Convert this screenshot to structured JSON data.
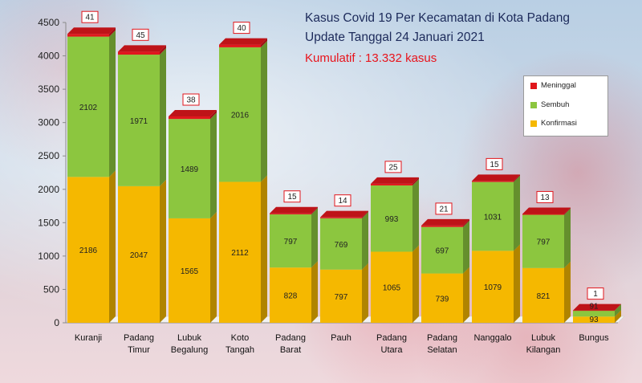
{
  "header": {
    "title_line1": "Kasus Covid 19 Per Kecamatan di Kota Padang",
    "title_line2": "Update Tanggal 24 Januari 2021",
    "cumulative": "Kumulatif : 13.332 kasus"
  },
  "legend": [
    {
      "label": "Meninggal",
      "color": "#e0161c"
    },
    {
      "label": "Sembuh",
      "color": "#8cc63f"
    },
    {
      "label": "Konfirmasi",
      "color": "#f5b800"
    }
  ],
  "chart_data": {
    "type": "bar",
    "stacked": true,
    "categories": [
      [
        "Kuranji"
      ],
      [
        "Padang",
        "Timur"
      ],
      [
        "Lubuk",
        "Begalung"
      ],
      [
        "Koto",
        "Tangah"
      ],
      [
        "Padang",
        "Barat"
      ],
      [
        "Pauh"
      ],
      [
        "Padang",
        "Utara"
      ],
      [
        "Padang",
        "Selatan"
      ],
      [
        "Nanggalo"
      ],
      [
        "Lubuk",
        "Kilangan"
      ],
      [
        "Bungus"
      ]
    ],
    "series": [
      {
        "name": "Konfirmasi",
        "color": "#f5b800",
        "values": [
          2186,
          2047,
          1565,
          2112,
          828,
          797,
          1065,
          739,
          1079,
          821,
          93
        ]
      },
      {
        "name": "Sembuh",
        "color": "#8cc63f",
        "values": [
          2102,
          1971,
          1489,
          2016,
          797,
          769,
          993,
          697,
          1031,
          797,
          91
        ]
      },
      {
        "name": "Meninggal",
        "color": "#e0161c",
        "values": [
          41,
          45,
          38,
          40,
          15,
          14,
          25,
          21,
          15,
          13,
          1
        ]
      }
    ],
    "ylim": [
      0,
      4500
    ],
    "yticks": [
      0,
      500,
      1000,
      1500,
      2000,
      2500,
      3000,
      3500,
      4000,
      4500
    ],
    "grid": false,
    "legend_position": "right"
  }
}
